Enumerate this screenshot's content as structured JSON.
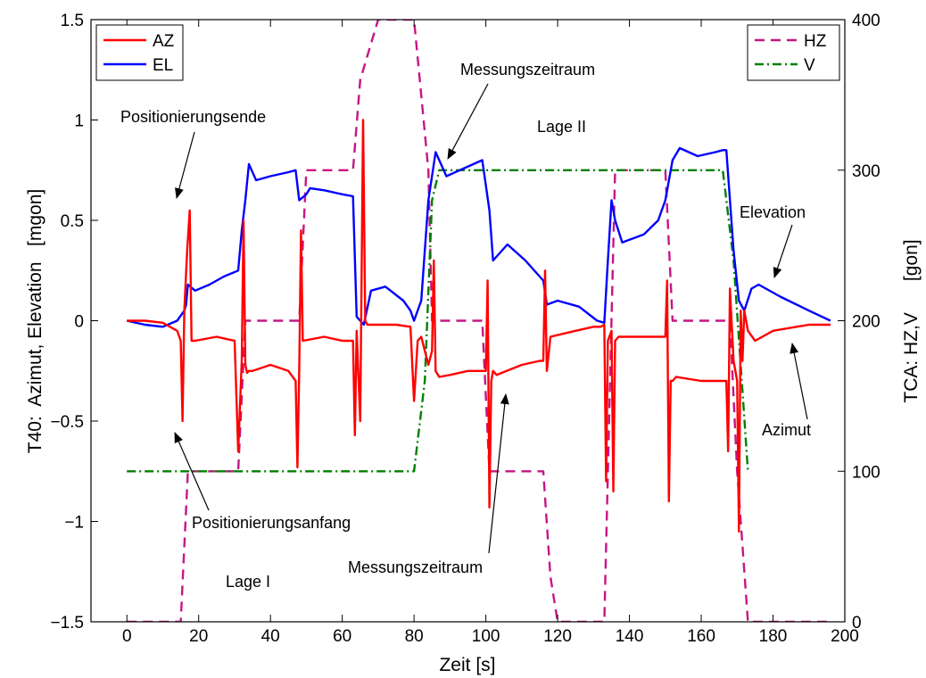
{
  "chart_data": {
    "type": "line",
    "xlabel": "Zeit [s]",
    "ylabel_left": "T40:  Azimut, Elevation   [mgon]",
    "ylabel_right": "TCA: HZ,V      [gon]",
    "xlim": [
      -10,
      200
    ],
    "ylim_left": [
      -1.5,
      1.5
    ],
    "ylim_right": [
      0,
      400
    ],
    "xticks": [
      "0",
      "20",
      "40",
      "60",
      "80",
      "100",
      "120",
      "140",
      "160",
      "180",
      "200"
    ],
    "yticks_left": [
      "−1.5",
      "−1",
      "−0.5",
      "0",
      "0.5",
      "1",
      "1.5"
    ],
    "yticks_right": [
      "0",
      "100",
      "200",
      "300",
      "400"
    ],
    "grid": false,
    "legend_left": [
      {
        "name": "AZ",
        "color": "#ff0000",
        "style": "solid"
      },
      {
        "name": "EL",
        "color": "#0000ff",
        "style": "solid"
      }
    ],
    "legend_right": [
      {
        "name": "HZ",
        "color": "#c71585",
        "style": "dashed"
      },
      {
        "name": "V",
        "color": "#008000",
        "style": "dashdot"
      }
    ],
    "annotations": [
      "Positionierungsende",
      "Messungszeitraum",
      "Lage II",
      "Elevation",
      "Azimut",
      "Positionierungsanfang",
      "Messungszeitraum",
      "Lage I"
    ],
    "series": [
      {
        "name": "HZ",
        "axis": "right",
        "color": "#c71585",
        "x": [
          0,
          15,
          17,
          31,
          33,
          48,
          50,
          63,
          65,
          70,
          80,
          84,
          85,
          99,
          101,
          116,
          118,
          120,
          133,
          136,
          150,
          152,
          168,
          170,
          173,
          196
        ],
        "y": [
          0,
          0,
          100,
          100,
          200,
          200,
          300,
          300,
          360,
          400,
          400,
          300,
          200,
          200,
          100,
          100,
          30,
          0,
          0,
          300,
          300,
          200,
          200,
          100,
          0,
          0
        ]
      },
      {
        "name": "V",
        "axis": "right",
        "color": "#008000",
        "x": [
          0,
          80,
          83,
          85,
          87,
          166,
          169,
          173
        ],
        "y": [
          100,
          100,
          160,
          280,
          300,
          300,
          240,
          100
        ]
      },
      {
        "name": "EL",
        "axis": "left",
        "color": "#0000ff",
        "x": [
          0,
          5,
          10,
          14,
          16,
          16.5,
          17,
          19,
          23,
          27,
          31,
          32,
          33,
          34,
          36,
          40,
          45,
          47,
          48,
          50,
          51,
          55,
          60,
          63,
          64,
          66,
          68,
          72,
          77,
          79,
          80,
          82,
          84,
          86,
          89,
          94,
          99,
          101,
          102,
          106,
          111,
          116,
          117,
          120,
          126,
          131,
          133,
          134,
          135,
          136,
          138,
          144,
          148,
          150,
          152,
          154,
          159,
          164,
          166,
          167,
          169,
          170.5,
          172,
          174,
          176,
          182,
          190,
          196
        ],
        "y": [
          0,
          -0.02,
          -0.03,
          0,
          0.05,
          0.08,
          0.18,
          0.15,
          0.18,
          0.22,
          0.25,
          0.45,
          0.6,
          0.78,
          0.7,
          0.72,
          0.74,
          0.75,
          0.6,
          0.63,
          0.66,
          0.65,
          0.63,
          0.62,
          0.02,
          -0.02,
          0.15,
          0.17,
          0.1,
          0.05,
          0.0,
          0.1,
          0.6,
          0.84,
          0.72,
          0.76,
          0.8,
          0.55,
          0.3,
          0.38,
          0.3,
          0.2,
          0.08,
          0.1,
          0.07,
          0.0,
          -0.01,
          0.3,
          0.6,
          0.5,
          0.39,
          0.43,
          0.5,
          0.6,
          0.8,
          0.86,
          0.82,
          0.84,
          0.85,
          0.85,
          0.35,
          0.1,
          0.05,
          0.16,
          0.18,
          0.12,
          0.05,
          0.0
        ]
      },
      {
        "name": "AZ",
        "axis": "left",
        "color": "#ff0000",
        "x": [
          0,
          5,
          10,
          14,
          15,
          15.5,
          16,
          16.8,
          17.5,
          18,
          19,
          25,
          30,
          31,
          32,
          32.5,
          33,
          33.5,
          34,
          35,
          40,
          45,
          47,
          47.5,
          48,
          48.5,
          49,
          55,
          60,
          62,
          63,
          63.5,
          64,
          65,
          65.8,
          66.4,
          67,
          70,
          75,
          79,
          80,
          81,
          82,
          84,
          85,
          85.5,
          86,
          87,
          90,
          95,
          100,
          100.5,
          101,
          101.5,
          102,
          103,
          110,
          115,
          116,
          116.5,
          117,
          118,
          125,
          130,
          132,
          133,
          133.5,
          134,
          135,
          135.5,
          136,
          137,
          140,
          145,
          150,
          150.5,
          151,
          151.5,
          152,
          153,
          160,
          166,
          167,
          167.5,
          168,
          169,
          170,
          170.5,
          171,
          171.5,
          172,
          173,
          175,
          180,
          190,
          196
        ],
        "y": [
          0,
          0,
          -0.01,
          -0.05,
          -0.1,
          -0.5,
          0.05,
          0.35,
          0.55,
          -0.1,
          -0.1,
          -0.08,
          -0.1,
          -0.65,
          -0.2,
          0.5,
          -0.22,
          -0.26,
          -0.25,
          -0.25,
          -0.22,
          -0.25,
          -0.3,
          -0.73,
          -0.25,
          0.45,
          -0.1,
          -0.08,
          -0.1,
          -0.1,
          -0.1,
          -0.57,
          -0.05,
          -0.5,
          1.0,
          0.0,
          -0.02,
          -0.02,
          -0.02,
          -0.03,
          -0.4,
          -0.1,
          -0.08,
          -0.22,
          -0.15,
          0.3,
          -0.25,
          -0.28,
          -0.27,
          -0.25,
          -0.25,
          0.2,
          -0.93,
          -0.3,
          -0.25,
          -0.27,
          -0.22,
          -0.2,
          -0.2,
          0.25,
          -0.25,
          -0.08,
          -0.05,
          -0.03,
          -0.03,
          -0.02,
          -0.8,
          -0.1,
          -0.05,
          -0.85,
          -0.1,
          -0.08,
          -0.08,
          -0.08,
          -0.08,
          0.2,
          -0.9,
          -0.3,
          -0.3,
          -0.28,
          -0.3,
          -0.3,
          -0.3,
          -0.65,
          0.16,
          -0.2,
          -0.3,
          -1.05,
          0.05,
          -0.2,
          0.05,
          -0.05,
          -0.1,
          -0.05,
          -0.02,
          -0.02
        ]
      }
    ]
  }
}
